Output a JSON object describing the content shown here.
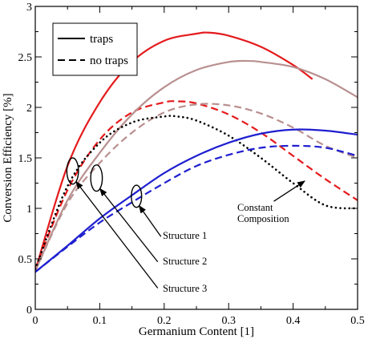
{
  "chart_data": {
    "type": "line",
    "xlabel": "Germanium Content [1]",
    "ylabel": "Conversion Efficiency [%]",
    "xlim": [
      0,
      0.5
    ],
    "ylim": [
      0,
      3
    ],
    "xticks": [
      "0",
      "0.1",
      "0.2",
      "0.3",
      "0.4",
      "0.5"
    ],
    "yticks": [
      "0",
      "0.5",
      "1",
      "1.5",
      "2",
      "2.5",
      "3"
    ],
    "grid": false,
    "legend": {
      "position": "top-left",
      "entries": [
        {
          "label": "traps",
          "style": "solid"
        },
        {
          "label": "no traps",
          "style": "dashed"
        }
      ]
    },
    "series": [
      {
        "group": "red",
        "style": "solid",
        "color": "#e41a1c",
        "x": [
          0,
          0.05,
          0.1,
          0.15,
          0.2,
          0.25,
          0.27,
          0.3,
          0.35,
          0.4,
          0.43
        ],
        "y": [
          0.38,
          1.42,
          2.05,
          2.45,
          2.66,
          2.73,
          2.74,
          2.71,
          2.6,
          2.42,
          2.28
        ]
      },
      {
        "group": "red",
        "style": "dashed",
        "color": "#e41a1c",
        "x": [
          0,
          0.05,
          0.1,
          0.15,
          0.2,
          0.22,
          0.25,
          0.3,
          0.35,
          0.4,
          0.45,
          0.5
        ],
        "y": [
          0.4,
          1.18,
          1.68,
          1.95,
          2.05,
          2.06,
          2.04,
          1.93,
          1.75,
          1.52,
          1.29,
          1.08
        ]
      },
      {
        "group": "rosy",
        "style": "solid",
        "color": "#b99090",
        "x": [
          0,
          0.05,
          0.1,
          0.15,
          0.2,
          0.25,
          0.3,
          0.33,
          0.35,
          0.4,
          0.45,
          0.5
        ],
        "y": [
          0.38,
          1.08,
          1.55,
          1.93,
          2.2,
          2.37,
          2.45,
          2.46,
          2.45,
          2.4,
          2.28,
          2.1
        ]
      },
      {
        "group": "rosy",
        "style": "dashed",
        "color": "#b99090",
        "x": [
          0,
          0.05,
          0.1,
          0.15,
          0.2,
          0.25,
          0.3,
          0.35,
          0.4,
          0.45,
          0.5
        ],
        "y": [
          0.38,
          1.05,
          1.45,
          1.75,
          1.95,
          2.03,
          2.02,
          1.94,
          1.8,
          1.62,
          1.5
        ]
      },
      {
        "group": "constant",
        "style": "dotted",
        "color": "#000000",
        "x": [
          0,
          0.05,
          0.1,
          0.15,
          0.2,
          0.22,
          0.25,
          0.3,
          0.35,
          0.4,
          0.45,
          0.5
        ],
        "y": [
          0.4,
          1.22,
          1.65,
          1.85,
          1.91,
          1.91,
          1.87,
          1.72,
          1.5,
          1.25,
          1.03,
          1.0
        ]
      },
      {
        "group": "blue",
        "style": "solid",
        "color": "#1f1fd0",
        "x": [
          0,
          0.05,
          0.1,
          0.15,
          0.2,
          0.25,
          0.3,
          0.35,
          0.4,
          0.45,
          0.5
        ],
        "y": [
          0.37,
          0.63,
          0.9,
          1.13,
          1.35,
          1.52,
          1.65,
          1.74,
          1.78,
          1.77,
          1.73
        ]
      },
      {
        "group": "blue",
        "style": "dashed",
        "color": "#1f1fd0",
        "x": [
          0,
          0.05,
          0.1,
          0.15,
          0.2,
          0.25,
          0.3,
          0.35,
          0.4,
          0.45,
          0.5
        ],
        "y": [
          0.37,
          0.62,
          0.86,
          1.06,
          1.25,
          1.42,
          1.53,
          1.6,
          1.62,
          1.6,
          1.52
        ]
      }
    ],
    "annotations": [
      {
        "id": "structure-1",
        "text": "Structure 1",
        "ellipse": {
          "x": 0.157,
          "y": 1.12,
          "rx": 0.008,
          "ry": 0.11
        },
        "arrow_from": {
          "x": 0.195,
          "y": 0.72
        }
      },
      {
        "id": "structure-2",
        "text": "Structure 2",
        "ellipse": {
          "x": 0.095,
          "y": 1.3,
          "rx": 0.009,
          "ry": 0.13
        },
        "arrow_from": {
          "x": 0.19,
          "y": 0.47
        }
      },
      {
        "id": "structure-3",
        "text": "Structure 3",
        "ellipse": {
          "x": 0.058,
          "y": 1.37,
          "rx": 0.009,
          "ry": 0.13
        },
        "arrow_from": {
          "x": 0.19,
          "y": 0.21
        }
      },
      {
        "id": "constant-composition",
        "text_lines": [
          "Constant",
          "Composition"
        ],
        "arrow_from": {
          "x": 0.37,
          "y": 1.07
        },
        "arrow_to": {
          "x": 0.418,
          "y": 1.27
        }
      }
    ]
  }
}
